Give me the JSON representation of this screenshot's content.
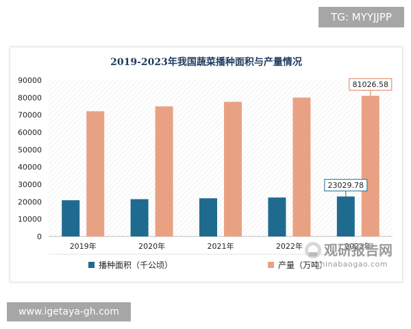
{
  "badges": {
    "top_right": "TG: MYYJJPP",
    "bottom_left": "www.igetaya-gh.com"
  },
  "watermark": {
    "brand_cn": "观研报告网",
    "brand_en": "chinabaogao.com"
  },
  "colors": {
    "area": "#1f6b8f",
    "output": "#e8a283",
    "title": "#1f3a5f",
    "hatch": "#e6e6e6",
    "callout_area_border": "#1f6b8f",
    "callout_output_border": "#e07a5a"
  },
  "chart_data": {
    "type": "bar",
    "title": "2019-2023年我国蔬菜播种面积与产量情况",
    "categories": [
      "2019年",
      "2020年",
      "2021年",
      "2022年",
      "2023年"
    ],
    "series": [
      {
        "name": "播种面积（千公顷）",
        "values": [
          20863,
          21485,
          21986,
          22434,
          23029.78
        ]
      },
      {
        "name": "产量（万吨）",
        "values": [
          72103,
          74913,
          77549,
          79997,
          81026.58
        ]
      }
    ],
    "y_ticks": [
      "0",
      "10000",
      "20000",
      "30000",
      "40000",
      "50000",
      "60000",
      "70000",
      "80000",
      "90000"
    ],
    "ylim": [
      0,
      90000
    ],
    "annotations": [
      {
        "series": 0,
        "category": 4,
        "text": "23029.78"
      },
      {
        "series": 1,
        "category": 4,
        "text": "81026.58"
      }
    ],
    "legend_position": "bottom",
    "grid": false
  }
}
